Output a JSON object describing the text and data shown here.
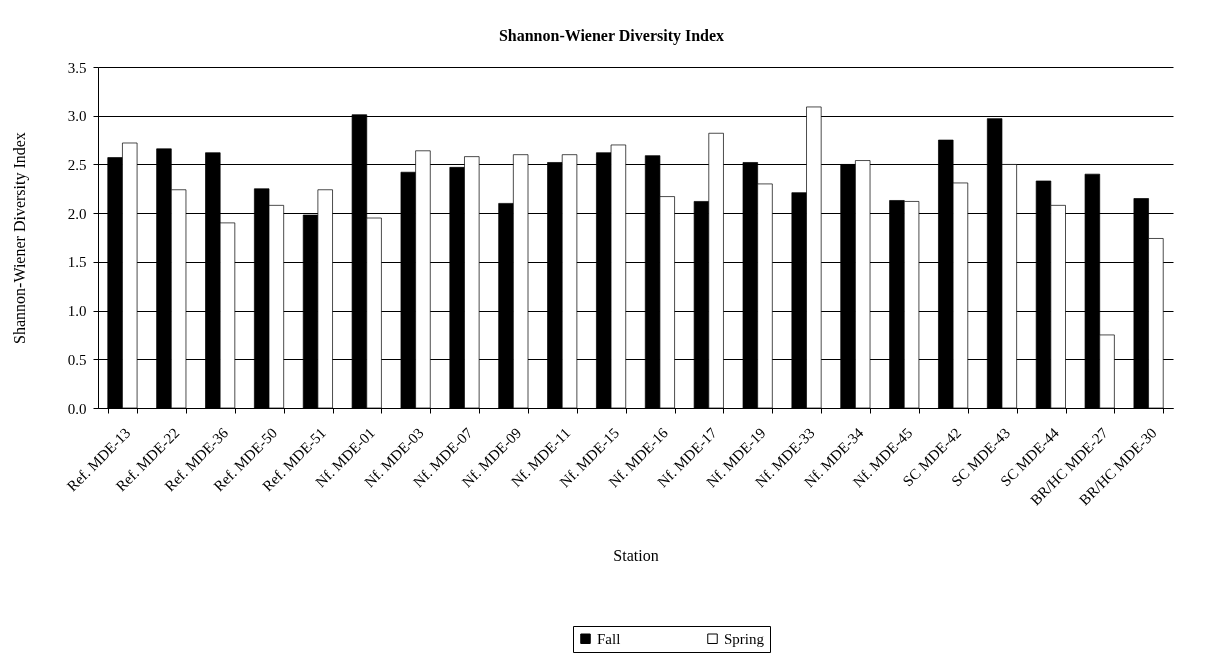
{
  "chart_data": {
    "type": "bar",
    "title": "Shannon-Wiener Diversity Index",
    "xlabel": "Station",
    "ylabel": "Shannon-Wiener Diversity Index",
    "categories": [
      "Ref. MDE-13",
      "Ref. MDE-22",
      "Ref. MDE-36",
      "Ref. MDE-50",
      "Ref. MDE-51",
      "Nf. MDE-01",
      "Nf. MDE-03",
      "Nf. MDE-07",
      "Nf. MDE-09",
      "Nf. MDE-11",
      "Nf. MDE-15",
      "Nf. MDE-16",
      "Nf. MDE-17",
      "Nf. MDE-19",
      "Nf. MDE-33",
      "Nf. MDE-34",
      "Nf. MDE-45",
      "SC MDE-42",
      "SC MDE-43",
      "SC MDE-44",
      "BR/HC MDE-27",
      "BR/HC MDE-30"
    ],
    "series": [
      {
        "name": "Fall",
        "color": "#000000",
        "values": [
          2.57,
          2.66,
          2.62,
          2.25,
          1.98,
          3.01,
          2.42,
          2.47,
          2.1,
          2.52,
          2.62,
          2.59,
          2.12,
          2.52,
          2.21,
          2.5,
          2.13,
          2.75,
          2.97,
          2.33,
          2.4,
          2.15
        ]
      },
      {
        "name": "Spring",
        "color": "#ffffff",
        "values": [
          2.72,
          2.24,
          1.9,
          2.08,
          2.24,
          1.95,
          2.64,
          2.58,
          2.6,
          2.6,
          2.7,
          2.17,
          2.82,
          2.3,
          3.09,
          2.54,
          2.12,
          2.31,
          2.5,
          2.08,
          0.75,
          1.74
        ]
      }
    ],
    "ylim": [
      0,
      3.5
    ],
    "yticks": [
      {
        "value": 0,
        "label": "0.0"
      },
      {
        "value": 0.5,
        "label": "0.5"
      },
      {
        "value": 1,
        "label": "1.0"
      },
      {
        "value": 1.5,
        "label": "1.5"
      },
      {
        "value": 2,
        "label": "2.0"
      },
      {
        "value": 2.5,
        "label": "2.5"
      },
      {
        "value": 3,
        "label": "3.0"
      },
      {
        "value": 3.5,
        "label": "3.5"
      }
    ],
    "grid": "y",
    "legend": "bottom"
  }
}
